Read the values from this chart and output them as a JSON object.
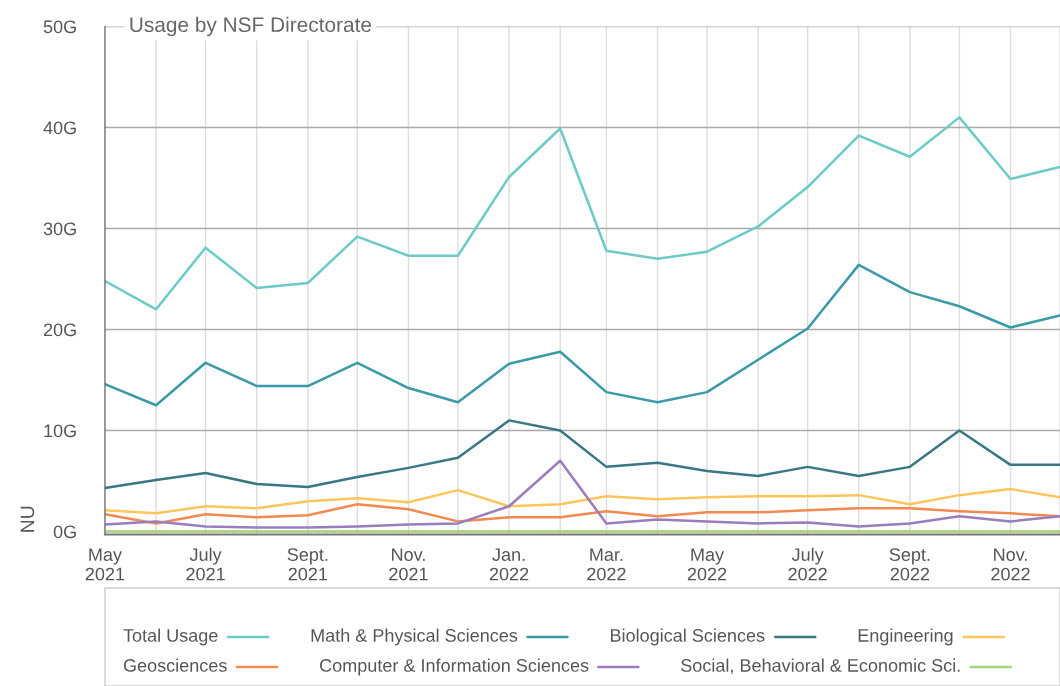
{
  "chart_data": {
    "type": "line",
    "title": "Usage by NSF Directorate",
    "ylabel": "NU",
    "x": [
      "2021-05",
      "2021-06",
      "2021-07",
      "2021-08",
      "2021-09",
      "2021-10",
      "2021-11",
      "2021-12",
      "2022-01",
      "2022-02",
      "2022-03",
      "2022-04",
      "2022-05",
      "2022-06",
      "2022-07",
      "2022-08",
      "2022-09",
      "2022-10",
      "2022-11",
      "2022-12"
    ],
    "series": [
      {
        "name": "Total Usage",
        "color": "#6ccbc6",
        "values": [
          24.8,
          22.0,
          28.1,
          24.1,
          24.6,
          29.2,
          27.3,
          27.3,
          35.1,
          39.9,
          27.8,
          27.0,
          27.7,
          30.2,
          34.1,
          39.2,
          37.1,
          41.0,
          34.9,
          36.1
        ]
      },
      {
        "name": "Math & Physical Sciences",
        "color": "#3a9aa8",
        "values": [
          14.6,
          12.5,
          16.7,
          14.4,
          14.4,
          16.7,
          14.2,
          12.8,
          16.6,
          17.8,
          13.8,
          12.8,
          13.8,
          17.0,
          20.1,
          26.4,
          23.7,
          22.3,
          20.2,
          21.4
        ]
      },
      {
        "name": "Biological Sciences",
        "color": "#3a7785",
        "values": [
          4.3,
          5.1,
          5.8,
          4.7,
          4.4,
          5.4,
          6.3,
          7.3,
          11.0,
          10.0,
          6.4,
          6.8,
          6.0,
          5.5,
          6.4,
          5.5,
          6.4,
          10.0,
          6.6,
          6.6
        ]
      },
      {
        "name": "Engineering",
        "color": "#fcc65c",
        "values": [
          2.1,
          1.8,
          2.5,
          2.3,
          3.0,
          3.3,
          2.9,
          4.1,
          2.5,
          2.7,
          3.5,
          3.2,
          3.4,
          3.5,
          3.5,
          3.6,
          2.7,
          3.6,
          4.2,
          3.4
        ]
      },
      {
        "name": "Geosciences",
        "color": "#f08a50",
        "values": [
          1.7,
          0.8,
          1.7,
          1.4,
          1.6,
          2.7,
          2.2,
          1.0,
          1.4,
          1.4,
          2.0,
          1.5,
          1.9,
          1.9,
          2.1,
          2.3,
          2.3,
          2.0,
          1.8,
          1.5
        ]
      },
      {
        "name": "Computer & Information Sciences",
        "color": "#9b7cbf",
        "values": [
          0.7,
          1.0,
          0.5,
          0.4,
          0.4,
          0.5,
          0.7,
          0.8,
          2.5,
          7.0,
          0.8,
          1.2,
          1.0,
          0.8,
          0.9,
          0.5,
          0.8,
          1.5,
          1.0,
          1.5
        ]
      },
      {
        "name": "Social, Behavioral & Economic Sci.",
        "color": "#a5d57a",
        "values": [
          0,
          0,
          0,
          0,
          0,
          0,
          0,
          0,
          0,
          0,
          0,
          0,
          0,
          0,
          0,
          0,
          0,
          0,
          0,
          0
        ]
      }
    ],
    "xlim": [
      "2021-05",
      "2022-12"
    ],
    "xticks": [
      {
        "value": "2021-05",
        "label": "May\n2021"
      },
      {
        "value": "2021-06",
        "label": null
      },
      {
        "value": "2021-07",
        "label": "July\n2021"
      },
      {
        "value": "2021-08",
        "label": null
      },
      {
        "value": "2021-09",
        "label": "Sept.\n2021"
      },
      {
        "value": "2021-10",
        "label": null
      },
      {
        "value": "2021-11",
        "label": "Nov.\n2021"
      },
      {
        "value": "2021-12",
        "label": null
      },
      {
        "value": "2022-01",
        "label": "Jan.\n2022"
      },
      {
        "value": "2022-02",
        "label": null
      },
      {
        "value": "2022-03",
        "label": "Mar.\n2022"
      },
      {
        "value": "2022-04",
        "label": null
      },
      {
        "value": "2022-05",
        "label": "May\n2022"
      },
      {
        "value": "2022-06",
        "label": null
      },
      {
        "value": "2022-07",
        "label": "July\n2022"
      },
      {
        "value": "2022-08",
        "label": null
      },
      {
        "value": "2022-09",
        "label": "Sept.\n2022"
      },
      {
        "value": "2022-10",
        "label": null
      },
      {
        "value": "2022-11",
        "label": "Nov.\n2022"
      },
      {
        "value": "2022-12",
        "label": null
      }
    ],
    "ylim": [
      -0.3,
      50
    ],
    "yticks": [
      {
        "value": 0,
        "label": "0G"
      },
      {
        "value": 10,
        "label": "10G"
      },
      {
        "value": 20,
        "label": "20G"
      },
      {
        "value": 30,
        "label": "30G"
      },
      {
        "value": 40,
        "label": "40G"
      },
      {
        "value": 50,
        "label": "50G"
      }
    ],
    "grid": true,
    "legend": "bottom",
    "line_style": "solid"
  }
}
